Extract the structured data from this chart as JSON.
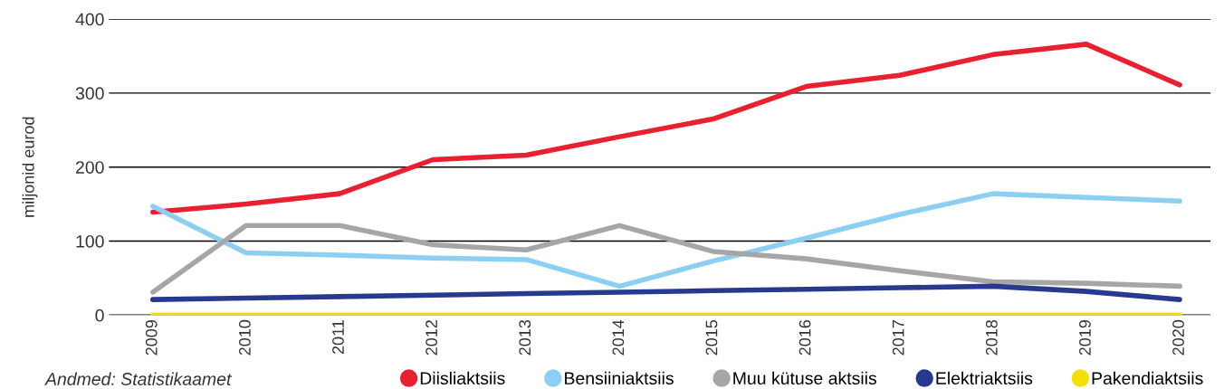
{
  "chart_data": {
    "type": "line",
    "ylabel": "miljonid eurod",
    "categories": [
      "2009",
      "2010",
      "2011",
      "2012",
      "2013",
      "2014",
      "2015",
      "2016",
      "2017",
      "2018",
      "2019",
      "2020"
    ],
    "series": [
      {
        "name": "Diisliaktsiis",
        "color": "#e8202f",
        "values": [
          139,
          150,
          164,
          210,
          216,
          241,
          265,
          309,
          324,
          352,
          366,
          311
        ]
      },
      {
        "name": "Bensiiniaktsiis",
        "color": "#8ccff2",
        "values": [
          147,
          84,
          81,
          77,
          75,
          39,
          73,
          104,
          136,
          164,
          159,
          154
        ]
      },
      {
        "name": "Muu kütuse aktsiis",
        "color": "#a6a6a6",
        "values": [
          31,
          121,
          121,
          95,
          88,
          121,
          86,
          76,
          60,
          45,
          43,
          39
        ]
      },
      {
        "name": "Elektriaktsiis",
        "color": "#283a8f",
        "values": [
          21,
          23,
          25,
          27,
          29,
          31,
          33,
          35,
          37,
          39,
          32,
          21
        ]
      },
      {
        "name": "Pakendiaktsiis",
        "color": "#f4e000",
        "values": [
          0,
          0,
          0,
          0,
          0,
          0,
          0,
          0,
          0,
          0,
          0,
          0
        ]
      }
    ],
    "ylim": [
      0,
      400
    ],
    "yticks": [
      0,
      100,
      200,
      300,
      400
    ],
    "grid": "y",
    "legend": "bottom",
    "marker": "none",
    "line_style": "solid",
    "annotations": [
      "Andmed: Statistikaamet"
    ]
  }
}
